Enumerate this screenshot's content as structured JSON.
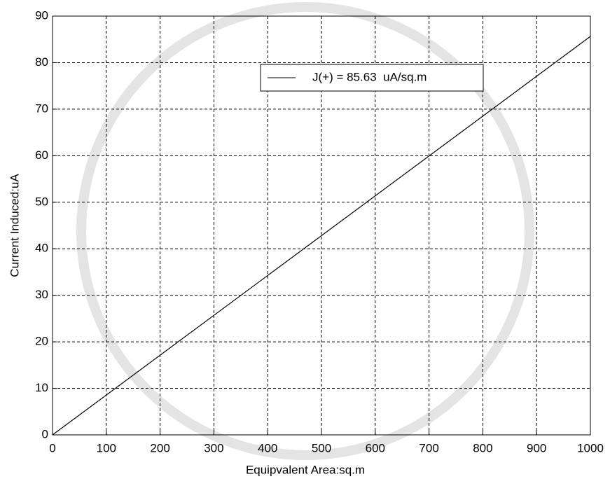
{
  "chart_data": {
    "type": "line",
    "xlabel": "Equipvalent Area:sq.m",
    "ylabel": "Current Induced:uA",
    "x": [
      0,
      1000
    ],
    "series": [
      {
        "name": "J(+) = 85.63  uA/sq.m",
        "color": "#000000",
        "values": [
          0,
          85.63
        ]
      }
    ],
    "xlim": [
      0,
      1000
    ],
    "ylim": [
      0,
      90
    ],
    "xticks": [
      0,
      100,
      200,
      300,
      400,
      500,
      600,
      700,
      800,
      900,
      1000
    ],
    "yticks": [
      0,
      10,
      20,
      30,
      40,
      50,
      60,
      70,
      80,
      90
    ],
    "grid": true,
    "legend": "upper right"
  }
}
